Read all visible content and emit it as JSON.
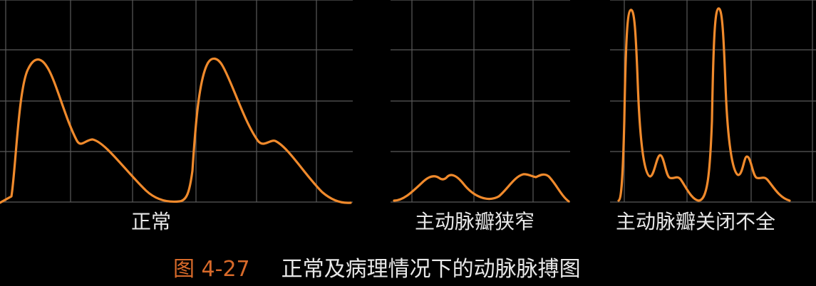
{
  "panels": [
    {
      "label": "正常",
      "kind": "normal"
    },
    {
      "label": "主动脉瓣狭窄",
      "kind": "aortic-stenosis"
    },
    {
      "label": "主动脉瓣关闭不全",
      "kind": "aortic-insufficiency"
    }
  ],
  "caption": {
    "number": "图 4-27",
    "title": "正常及病理情况下的动脉脉搏图"
  },
  "colors": {
    "background": "#000000",
    "grid": "#5a5a5a",
    "waveform": "#f08a2c",
    "label_text": "#e8e8e8",
    "caption_number": "#d86a2a"
  }
}
